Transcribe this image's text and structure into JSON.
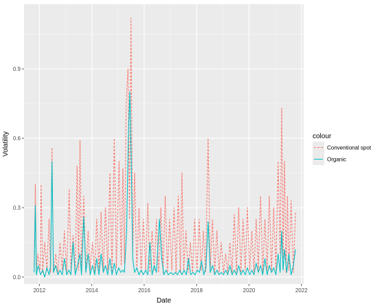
{
  "chart_data": {
    "type": "line",
    "xlabel": "Date",
    "ylabel": "Volatility",
    "xlim": [
      "2011-06-01",
      "2022-02-01"
    ],
    "ylim": [
      -0.03,
      1.18
    ],
    "x_ticks": [
      {
        "date": "2012-01-01",
        "label": "2012"
      },
      {
        "date": "2014-01-01",
        "label": "2014"
      },
      {
        "date": "2016-01-01",
        "label": "2016"
      },
      {
        "date": "2018-01-01",
        "label": "2018"
      },
      {
        "date": "2020-01-01",
        "label": "2020"
      },
      {
        "date": "2022-01-01",
        "label": "2022"
      }
    ],
    "y_ticks": [
      {
        "value": 0.0,
        "label": "0.0"
      },
      {
        "value": 0.3,
        "label": "0.3"
      },
      {
        "value": 0.6,
        "label": "0.6"
      },
      {
        "value": 0.9,
        "label": "0.9"
      }
    ],
    "grid": true,
    "legend": {
      "title": "colour",
      "position": "right"
    },
    "series": [
      {
        "name": "Conventional spot",
        "color": "#F8766D",
        "dash": "dashed",
        "points": [
          [
            "2011-10-20",
            0.05
          ],
          [
            "2011-11-05",
            0.4
          ],
          [
            "2011-11-20",
            0.03
          ],
          [
            "2011-12-10",
            0.1
          ],
          [
            "2012-01-10",
            0.03
          ],
          [
            "2012-01-25",
            0.4
          ],
          [
            "2012-02-15",
            0.02
          ],
          [
            "2012-03-15",
            0.15
          ],
          [
            "2012-04-15",
            0.03
          ],
          [
            "2012-05-15",
            0.25
          ],
          [
            "2012-06-05",
            0.02
          ],
          [
            "2012-06-25",
            0.56
          ],
          [
            "2012-07-15",
            0.02
          ],
          [
            "2012-08-15",
            0.1
          ],
          [
            "2012-09-15",
            0.02
          ],
          [
            "2012-10-15",
            0.15
          ],
          [
            "2012-11-15",
            0.03
          ],
          [
            "2012-12-15",
            0.2
          ],
          [
            "2013-01-15",
            0.02
          ],
          [
            "2013-02-20",
            0.38
          ],
          [
            "2013-03-15",
            0.03
          ],
          [
            "2013-04-15",
            0.18
          ],
          [
            "2013-05-15",
            0.02
          ],
          [
            "2013-06-10",
            0.48
          ],
          [
            "2013-07-01",
            0.03
          ],
          [
            "2013-07-20",
            0.59
          ],
          [
            "2013-08-10",
            0.03
          ],
          [
            "2013-09-10",
            0.35
          ],
          [
            "2013-10-10",
            0.02
          ],
          [
            "2013-11-10",
            0.2
          ],
          [
            "2013-12-10",
            0.03
          ],
          [
            "2014-01-10",
            0.15
          ],
          [
            "2014-02-10",
            0.02
          ],
          [
            "2014-03-10",
            0.25
          ],
          [
            "2014-04-10",
            0.03
          ],
          [
            "2014-05-10",
            0.28
          ],
          [
            "2014-06-10",
            0.02
          ],
          [
            "2014-07-10",
            0.3
          ],
          [
            "2014-08-10",
            0.03
          ],
          [
            "2014-09-10",
            0.45
          ],
          [
            "2014-10-10",
            0.02
          ],
          [
            "2014-11-10",
            0.6
          ],
          [
            "2014-12-10",
            0.04
          ],
          [
            "2015-01-15",
            0.5
          ],
          [
            "2015-02-15",
            0.05
          ],
          [
            "2015-03-10",
            0.47
          ],
          [
            "2015-04-01",
            0.06
          ],
          [
            "2015-04-25",
            0.75
          ],
          [
            "2015-05-20",
            0.9
          ],
          [
            "2015-06-10",
            0.25
          ],
          [
            "2015-07-01",
            1.12
          ],
          [
            "2015-07-25",
            0.1
          ],
          [
            "2015-08-20",
            0.45
          ],
          [
            "2015-09-20",
            0.03
          ],
          [
            "2015-10-20",
            0.3
          ],
          [
            "2015-11-20",
            0.02
          ],
          [
            "2015-12-20",
            0.25
          ],
          [
            "2016-01-20",
            0.03
          ],
          [
            "2016-02-20",
            0.32
          ],
          [
            "2016-03-20",
            0.02
          ],
          [
            "2016-04-20",
            0.2
          ],
          [
            "2016-05-20",
            0.03
          ],
          [
            "2016-06-20",
            0.25
          ],
          [
            "2016-07-20",
            0.02
          ],
          [
            "2016-08-20",
            0.3
          ],
          [
            "2016-09-20",
            0.02
          ],
          [
            "2016-10-20",
            0.35
          ],
          [
            "2016-11-20",
            0.02
          ],
          [
            "2016-12-20",
            0.25
          ],
          [
            "2017-01-20",
            0.03
          ],
          [
            "2017-02-20",
            0.3
          ],
          [
            "2017-03-20",
            0.02
          ],
          [
            "2017-04-20",
            0.35
          ],
          [
            "2017-05-20",
            0.02
          ],
          [
            "2017-06-10",
            0.45
          ],
          [
            "2017-07-05",
            0.03
          ],
          [
            "2017-08-05",
            0.2
          ],
          [
            "2017-09-05",
            0.02
          ],
          [
            "2017-10-05",
            0.15
          ],
          [
            "2017-11-05",
            0.02
          ],
          [
            "2017-12-05",
            0.25
          ],
          [
            "2018-01-05",
            0.02
          ],
          [
            "2018-02-05",
            0.25
          ],
          [
            "2018-03-05",
            0.03
          ],
          [
            "2018-04-05",
            0.2
          ],
          [
            "2018-05-05",
            0.02
          ],
          [
            "2018-06-10",
            0.6
          ],
          [
            "2018-07-10",
            0.03
          ],
          [
            "2018-08-10",
            0.25
          ],
          [
            "2018-09-10",
            0.02
          ],
          [
            "2018-10-10",
            0.2
          ],
          [
            "2018-11-10",
            0.02
          ],
          [
            "2018-12-10",
            0.15
          ],
          [
            "2019-01-10",
            0.02
          ],
          [
            "2019-02-10",
            0.1
          ],
          [
            "2019-03-10",
            0.02
          ],
          [
            "2019-04-10",
            0.15
          ],
          [
            "2019-05-10",
            0.02
          ],
          [
            "2019-06-10",
            0.27
          ],
          [
            "2019-07-10",
            0.02
          ],
          [
            "2019-08-10",
            0.3
          ],
          [
            "2019-09-10",
            0.02
          ],
          [
            "2019-10-10",
            0.25
          ],
          [
            "2019-11-10",
            0.03
          ],
          [
            "2019-12-10",
            0.3
          ],
          [
            "2020-01-10",
            0.03
          ],
          [
            "2020-02-10",
            0.2
          ],
          [
            "2020-03-10",
            0.02
          ],
          [
            "2020-04-10",
            0.25
          ],
          [
            "2020-05-10",
            0.03
          ],
          [
            "2020-06-10",
            0.35
          ],
          [
            "2020-07-10",
            0.02
          ],
          [
            "2020-08-10",
            0.25
          ],
          [
            "2020-09-10",
            0.03
          ],
          [
            "2020-10-10",
            0.35
          ],
          [
            "2020-11-10",
            0.02
          ],
          [
            "2020-12-10",
            0.3
          ],
          [
            "2021-01-10",
            0.03
          ],
          [
            "2021-02-10",
            0.5
          ],
          [
            "2021-03-10",
            0.1
          ],
          [
            "2021-04-01",
            0.73
          ],
          [
            "2021-04-20",
            0.08
          ],
          [
            "2021-05-10",
            0.5
          ],
          [
            "2021-06-01",
            0.02
          ],
          [
            "2021-06-20",
            0.35
          ],
          [
            "2021-07-10",
            0.03
          ],
          [
            "2021-08-10",
            0.33
          ],
          [
            "2021-09-10",
            0.02
          ],
          [
            "2021-10-10",
            0.28
          ]
        ]
      },
      {
        "name": "Organic",
        "color": "#00BFC4",
        "dash": "solid",
        "points": [
          [
            "2011-10-20",
            0.02
          ],
          [
            "2011-11-05",
            0.31
          ],
          [
            "2011-11-20",
            0.01
          ],
          [
            "2011-12-15",
            0.05
          ],
          [
            "2012-01-15",
            0.01
          ],
          [
            "2012-02-15",
            0.03
          ],
          [
            "2012-03-15",
            0.0
          ],
          [
            "2012-04-15",
            0.04
          ],
          [
            "2012-05-15",
            0.01
          ],
          [
            "2012-06-05",
            0.05
          ],
          [
            "2012-06-25",
            0.5
          ],
          [
            "2012-07-15",
            0.02
          ],
          [
            "2012-08-15",
            0.05
          ],
          [
            "2012-09-15",
            0.01
          ],
          [
            "2012-10-15",
            0.03
          ],
          [
            "2012-11-15",
            0.01
          ],
          [
            "2012-12-15",
            0.08
          ],
          [
            "2013-01-15",
            0.01
          ],
          [
            "2013-02-15",
            0.03
          ],
          [
            "2013-03-15",
            0.01
          ],
          [
            "2013-04-15",
            0.15
          ],
          [
            "2013-05-15",
            0.01
          ],
          [
            "2013-06-15",
            0.05
          ],
          [
            "2013-07-20",
            0.1
          ],
          [
            "2013-08-10",
            0.01
          ],
          [
            "2013-09-10",
            0.26
          ],
          [
            "2013-10-10",
            0.02
          ],
          [
            "2013-11-10",
            0.1
          ],
          [
            "2013-12-10",
            0.01
          ],
          [
            "2014-01-10",
            0.05
          ],
          [
            "2014-02-10",
            0.01
          ],
          [
            "2014-03-10",
            0.08
          ],
          [
            "2014-04-10",
            0.01
          ],
          [
            "2014-05-10",
            0.1
          ],
          [
            "2014-06-10",
            0.02
          ],
          [
            "2014-07-10",
            0.05
          ],
          [
            "2014-08-10",
            0.01
          ],
          [
            "2014-09-10",
            0.08
          ],
          [
            "2014-10-10",
            0.01
          ],
          [
            "2014-11-10",
            0.06
          ],
          [
            "2014-12-10",
            0.01
          ],
          [
            "2015-01-10",
            0.04
          ],
          [
            "2015-02-10",
            0.02
          ],
          [
            "2015-03-10",
            0.03
          ],
          [
            "2015-04-01",
            0.02
          ],
          [
            "2015-05-01",
            0.2
          ],
          [
            "2015-05-25",
            0.6
          ],
          [
            "2015-06-15",
            0.8
          ],
          [
            "2015-07-05",
            0.5
          ],
          [
            "2015-07-25",
            0.08
          ],
          [
            "2015-08-20",
            0.02
          ],
          [
            "2015-09-20",
            0.04
          ],
          [
            "2015-10-20",
            0.01
          ],
          [
            "2015-11-20",
            0.03
          ],
          [
            "2015-12-20",
            0.01
          ],
          [
            "2016-01-20",
            0.03
          ],
          [
            "2016-02-20",
            0.01
          ],
          [
            "2016-03-20",
            0.15
          ],
          [
            "2016-04-20",
            0.01
          ],
          [
            "2016-05-20",
            0.05
          ],
          [
            "2016-06-20",
            0.02
          ],
          [
            "2016-08-01",
            0.25
          ],
          [
            "2016-09-01",
            0.08
          ],
          [
            "2016-10-01",
            0.01
          ],
          [
            "2016-11-01",
            0.03
          ],
          [
            "2016-12-01",
            0.01
          ],
          [
            "2017-01-10",
            0.02
          ],
          [
            "2017-02-10",
            0.01
          ],
          [
            "2017-03-10",
            0.02
          ],
          [
            "2017-04-10",
            0.01
          ],
          [
            "2017-05-10",
            0.03
          ],
          [
            "2017-06-10",
            0.01
          ],
          [
            "2017-07-10",
            0.03
          ],
          [
            "2017-08-10",
            0.01
          ],
          [
            "2017-09-10",
            0.08
          ],
          [
            "2017-10-10",
            0.01
          ],
          [
            "2017-11-10",
            0.02
          ],
          [
            "2017-12-10",
            0.01
          ],
          [
            "2018-01-10",
            0.03
          ],
          [
            "2018-02-10",
            0.02
          ],
          [
            "2018-03-10",
            0.07
          ],
          [
            "2018-04-10",
            0.01
          ],
          [
            "2018-05-10",
            0.04
          ],
          [
            "2018-06-10",
            0.24
          ],
          [
            "2018-07-10",
            0.02
          ],
          [
            "2018-08-10",
            0.05
          ],
          [
            "2018-09-10",
            0.01
          ],
          [
            "2018-10-10",
            0.03
          ],
          [
            "2018-11-10",
            0.01
          ],
          [
            "2018-12-10",
            0.02
          ],
          [
            "2019-01-10",
            0.01
          ],
          [
            "2019-02-10",
            0.03
          ],
          [
            "2019-03-10",
            0.01
          ],
          [
            "2019-04-10",
            0.05
          ],
          [
            "2019-05-10",
            0.01
          ],
          [
            "2019-06-10",
            0.03
          ],
          [
            "2019-07-10",
            0.01
          ],
          [
            "2019-08-10",
            0.05
          ],
          [
            "2019-09-10",
            0.01
          ],
          [
            "2019-10-10",
            0.03
          ],
          [
            "2019-11-10",
            0.01
          ],
          [
            "2019-12-10",
            0.04
          ],
          [
            "2020-01-10",
            0.01
          ],
          [
            "2020-02-10",
            0.03
          ],
          [
            "2020-03-10",
            0.01
          ],
          [
            "2020-04-10",
            0.06
          ],
          [
            "2020-05-10",
            0.02
          ],
          [
            "2020-06-10",
            0.05
          ],
          [
            "2020-07-10",
            0.01
          ],
          [
            "2020-08-10",
            0.08
          ],
          [
            "2020-09-10",
            0.01
          ],
          [
            "2020-10-10",
            0.05
          ],
          [
            "2020-11-10",
            0.02
          ],
          [
            "2020-12-10",
            0.04
          ],
          [
            "2021-01-10",
            0.01
          ],
          [
            "2021-02-10",
            0.1
          ],
          [
            "2021-03-10",
            0.02
          ],
          [
            "2021-04-01",
            0.2
          ],
          [
            "2021-04-20",
            0.03
          ],
          [
            "2021-05-10",
            0.12
          ],
          [
            "2021-06-10",
            0.02
          ],
          [
            "2021-07-10",
            0.1
          ],
          [
            "2021-08-10",
            0.01
          ],
          [
            "2021-09-10",
            0.05
          ],
          [
            "2021-10-10",
            0.12
          ]
        ]
      }
    ]
  }
}
